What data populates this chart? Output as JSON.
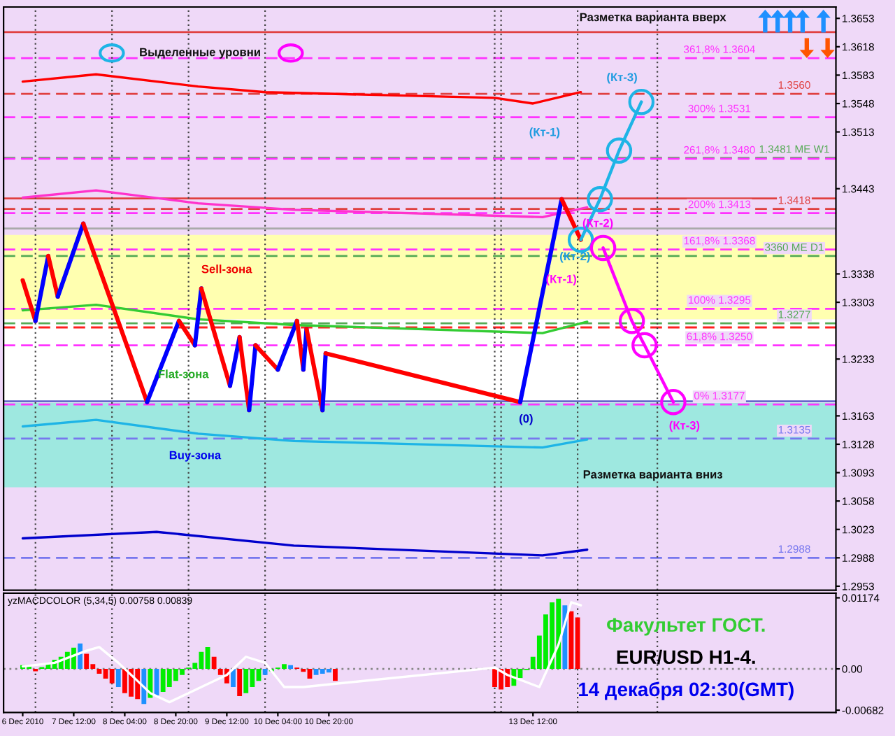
{
  "chart_data": [
    {
      "type": "line",
      "xlim": [
        "2010-12-06T14:00",
        "2010-12-17T11:00"
      ],
      "ylim": [
        1.2948,
        1.3667
      ],
      "yticks": [
        1.3653,
        1.3618,
        1.3583,
        1.3548,
        1.3513,
        1.3443,
        1.3338,
        1.3303,
        1.3233,
        1.3163,
        1.3128,
        1.3093,
        1.3058,
        1.3023,
        1.2988,
        1.2953
      ],
      "tick_labels": "y",
      "grid": false,
      "legend": false,
      "series": [
        {
          "color": "#ff0000",
          "x": [
            "2010-12-06T20:00",
            "2010-12-07T19:00",
            "2010-12-09T03:00",
            "2010-12-10T00:00",
            "2010-12-13T00:00",
            "2010-12-13T12:00",
            "2010-12-14T03:00"
          ],
          "values": [
            1.3575,
            1.3584,
            1.3569,
            1.3562,
            1.3555,
            1.3548,
            1.3562
          ]
        },
        {
          "color": "#ff33cc",
          "x": [
            "2010-12-06T20:00",
            "2010-12-07T19:00",
            "2010-12-09T03:00",
            "2010-12-10T09:00",
            "2010-12-13T15:00",
            "2010-12-14T05:00"
          ],
          "values": [
            1.3432,
            1.3441,
            1.3425,
            1.3417,
            1.3408,
            1.342
          ]
        },
        {
          "color": "#33cc33",
          "x": [
            "2010-12-06T20:00",
            "2010-12-07T19:00",
            "2010-12-09T03:00",
            "2010-12-10T09:00",
            "2010-12-13T15:00",
            "2010-12-14T05:00"
          ],
          "values": [
            1.3293,
            1.33,
            1.3282,
            1.3275,
            1.3265,
            1.3279
          ]
        },
        {
          "color": "#1eb4e6",
          "x": [
            "2010-12-06T20:00",
            "2010-12-07T19:00",
            "2010-12-09T03:00",
            "2010-12-10T09:00",
            "2010-12-13T15:00",
            "2010-12-14T05:00"
          ],
          "values": [
            1.315,
            1.3158,
            1.3141,
            1.3132,
            1.3124,
            1.3134
          ]
        },
        {
          "color": "#0000cc",
          "x": [
            "2010-12-06T20:00",
            "2010-12-08T14:00",
            "2010-12-10T09:00",
            "2010-12-13T15:00",
            "2010-12-14T05:00"
          ],
          "values": [
            1.3012,
            1.302,
            1.3003,
            1.2991,
            1.2998
          ]
        },
        {
          "color": "#ff0000",
          "x": [
            "2010-12-06T20:00",
            "2010-12-07T00:00"
          ],
          "values": [
            1.333,
            1.328
          ]
        },
        {
          "color": "#0000ff",
          "x": [
            "2010-12-07T00:00",
            "2010-12-07T04:00"
          ],
          "values": [
            1.328,
            1.336
          ]
        },
        {
          "color": "#ff0000",
          "x": [
            "2010-12-07T04:00",
            "2010-12-07T07:00"
          ],
          "values": [
            1.336,
            1.331
          ]
        },
        {
          "color": "#0000ff",
          "x": [
            "2010-12-07T07:00",
            "2010-12-07T15:00"
          ],
          "values": [
            1.331,
            1.34
          ]
        },
        {
          "color": "#ff0000",
          "x": [
            "2010-12-07T15:00",
            "2010-12-08T11:00"
          ],
          "values": [
            1.34,
            1.318
          ]
        },
        {
          "color": "#0000ff",
          "x": [
            "2010-12-08T11:00",
            "2010-12-08T21:00"
          ],
          "values": [
            1.318,
            1.328
          ]
        },
        {
          "color": "#ff0000",
          "x": [
            "2010-12-08T21:00",
            "2010-12-09T02:00"
          ],
          "values": [
            1.328,
            1.325
          ]
        },
        {
          "color": "#0000ff",
          "x": [
            "2010-12-09T02:00",
            "2010-12-09T04:00"
          ],
          "values": [
            1.325,
            1.332
          ]
        },
        {
          "color": "#ff0000",
          "x": [
            "2010-12-09T04:00",
            "2010-12-09T13:00"
          ],
          "values": [
            1.332,
            1.32
          ]
        },
        {
          "color": "#0000ff",
          "x": [
            "2010-12-09T13:00",
            "2010-12-09T16:00"
          ],
          "values": [
            1.32,
            1.326
          ]
        },
        {
          "color": "#ff0000",
          "x": [
            "2010-12-09T16:00",
            "2010-12-09T19:00"
          ],
          "values": [
            1.326,
            1.317
          ]
        },
        {
          "color": "#0000ff",
          "x": [
            "2010-12-09T19:00",
            "2010-12-09T21:00"
          ],
          "values": [
            1.317,
            1.325
          ]
        },
        {
          "color": "#ff0000",
          "x": [
            "2010-12-09T21:00",
            "2010-12-10T04:00"
          ],
          "values": [
            1.325,
            1.322
          ]
        },
        {
          "color": "#0000ff",
          "x": [
            "2010-12-10T04:00",
            "2010-12-10T10:00"
          ],
          "values": [
            1.322,
            1.328
          ]
        },
        {
          "color": "#ff0000",
          "x": [
            "2010-12-10T10:00",
            "2010-12-10T12:00"
          ],
          "values": [
            1.328,
            1.322
          ]
        },
        {
          "color": "#0000ff",
          "x": [
            "2010-12-10T12:00",
            "2010-12-10T13:00"
          ],
          "values": [
            1.322,
            1.327
          ]
        },
        {
          "color": "#ff0000",
          "x": [
            "2010-12-10T13:00",
            "2010-12-10T18:00"
          ],
          "values": [
            1.327,
            1.317
          ]
        },
        {
          "color": "#0000ff",
          "x": [
            "2010-12-10T18:00",
            "2010-12-10T19:00"
          ],
          "values": [
            1.317,
            1.324
          ]
        },
        {
          "color": "#ff0000",
          "x": [
            "2010-12-10T19:00",
            "2010-12-13T08:00"
          ],
          "values": [
            1.324,
            1.318
          ]
        },
        {
          "color": "#0000ff",
          "x": [
            "2010-12-13T08:00",
            "2010-12-13T21:00"
          ],
          "values": [
            1.318,
            1.343
          ]
        },
        {
          "color": "#ff0000",
          "x": [
            "2010-12-13T21:00",
            "2010-12-14T03:00"
          ],
          "values": [
            1.343,
            1.338
          ]
        },
        {
          "color": "#1eb4e6",
          "marker": "circle",
          "x": [
            "2010-12-14T03:00",
            "2010-12-14T09:00",
            "2010-12-14T15:00",
            "2010-12-14T22:00"
          ],
          "values": [
            1.338,
            1.343,
            1.349,
            1.355
          ]
        },
        {
          "color": "#ff00ff",
          "marker": "circle",
          "x": [
            "2010-12-14T10:00",
            "2010-12-14T19:00",
            "2010-12-14T23:00",
            "2010-12-15T08:00"
          ],
          "values": [
            1.337,
            1.328,
            1.325,
            1.318
          ]
        }
      ],
      "bands": [
        {
          "axis": "y",
          "from": 1.3282,
          "to": 1.3386,
          "color": "#ffffb0"
        },
        {
          "axis": "y",
          "from": 1.3179,
          "to": 1.3282,
          "color": "#ffffff"
        },
        {
          "axis": "y",
          "from": 1.3075,
          "to": 1.3179,
          "color": "#9ee8e0"
        }
      ],
      "ref_lines": [
        {
          "axis": "y",
          "value": 1.3604,
          "label": "361,8% 1.3604",
          "color": "#ff33ff",
          "line_style": "dashed"
        },
        {
          "axis": "y",
          "value": 1.356,
          "label": "1.3560",
          "color": "#e04040",
          "line_style": "dashed"
        },
        {
          "axis": "y",
          "value": 1.3531,
          "label": "300% 1.3531",
          "color": "#ff33ff",
          "line_style": "dashed"
        },
        {
          "axis": "y",
          "value": 1.3481,
          "label": "1.3481 МЕ W1",
          "color": "#55aa55",
          "line_style": "dashed"
        },
        {
          "axis": "y",
          "value": 1.348,
          "label": "261,8% 1.3480",
          "color": "#ff33ff",
          "line_style": "dashed"
        },
        {
          "axis": "y",
          "value": 1.3418,
          "label": "1.3418",
          "color": "#e04040",
          "line_style": "dashed"
        },
        {
          "axis": "y",
          "value": 1.3413,
          "label": "200% 1.3413",
          "color": "#ff33ff",
          "line_style": "dashed"
        },
        {
          "axis": "y",
          "value": 1.336,
          "label": "3360 МЕ D1",
          "color": "#55aa55",
          "line_style": "dashed"
        },
        {
          "axis": "y",
          "value": 1.3368,
          "label": "161,8% 1.3368",
          "color": "#ff33ff",
          "line_style": "dashed"
        },
        {
          "axis": "y",
          "value": 1.3277,
          "label": "1.3277",
          "color": "#55aa55",
          "line_style": "dashed"
        },
        {
          "axis": "y",
          "value": 1.3295,
          "label": "100% 1.3295",
          "color": "#ff33ff",
          "line_style": "dashed"
        },
        {
          "axis": "y",
          "value": 1.3135,
          "label": "1.3135",
          "color": "#7777ee",
          "line_style": "dashed"
        },
        {
          "axis": "y",
          "value": 1.325,
          "label": "61,8% 1.3250",
          "color": "#ff33ff",
          "line_style": "dashed"
        },
        {
          "axis": "y",
          "value": 1.2988,
          "label": "1.2988",
          "color": "#7777ee",
          "line_style": "dashed"
        },
        {
          "axis": "y",
          "value": 1.3177,
          "label": "0% 1.3177",
          "color": "#ff33ff",
          "line_style": "dashed"
        },
        {
          "axis": "y",
          "value": 1.3636,
          "color": "#e04040",
          "line_style": "solid"
        },
        {
          "axis": "y",
          "value": 1.3431,
          "color": "#e04040",
          "line_style": "solid"
        },
        {
          "axis": "y",
          "value": 1.3394,
          "color": "#aaaaaa",
          "line_style": "solid"
        },
        {
          "axis": "y",
          "value": 1.3272,
          "color": "#ff2020",
          "line_style": "dashed"
        },
        {
          "axis": "y",
          "value": 1.3181,
          "color": "#6666cc",
          "line_style": "solid"
        },
        {
          "axis": "x",
          "value": "2010-12-07T00:00",
          "color": "#444444",
          "line_style": "dotted"
        },
        {
          "axis": "x",
          "value": "2010-12-08T00:00",
          "color": "#444444",
          "line_style": "dotted"
        },
        {
          "axis": "x",
          "value": "2010-12-09T00:00",
          "color": "#444444",
          "line_style": "dotted"
        },
        {
          "axis": "x",
          "value": "2010-12-10T00:00",
          "color": "#444444",
          "line_style": "dotted"
        },
        {
          "axis": "x",
          "value": "2010-12-13T00:00",
          "color": "#444444",
          "line_style": "dotted"
        },
        {
          "axis": "x",
          "value": "2010-12-13T02:00",
          "color": "#444444",
          "line_style": "dotted"
        },
        {
          "axis": "x",
          "value": "2010-12-14T02:00",
          "color": "#444444",
          "line_style": "dotted"
        },
        {
          "axis": "x",
          "value": "2010-12-15T03:00",
          "color": "#444444",
          "line_style": "dotted"
        }
      ],
      "annotations": [
        "Разметка варианта вверх",
        "Выделенные уровни",
        "(Кт-1)",
        "(Кт-3)",
        "(Кт-2)",
        {
          "text": "(Кт-2)",
          "x": "2010-12-14T03:00",
          "y": 1.338
        },
        "(Кт-1)",
        "Sell-зона",
        "Flat-зона",
        {
          "text": "(0)",
          "x": "2010-12-13T08:00",
          "y": 1.318
        },
        "Buy-зона",
        "(Кт-3)",
        "Разметка варианта вниз"
      ]
    },
    {
      "type": "bar",
      "title": "yzMACDCOLOR (5,34,5) 0.00758 0.00839",
      "xlim": [
        "2010-12-06T14:00",
        "2010-12-17T11:00"
      ],
      "ylim": [
        -0.0072,
        0.0125
      ],
      "yticks": [
        0.01174,
        {
          "value": 0,
          "label": "0.00"
        },
        -0.00682
      ],
      "xticks": [
        {
          "value": "2010-12-06T20:00",
          "label": "6 Dec 2010"
        },
        {
          "value": "2010-12-07T12:00",
          "label": "7 Dec 12:00"
        },
        {
          "value": "2010-12-08T04:00",
          "label": "8 Dec 04:00"
        },
        {
          "value": "2010-12-08T20:00",
          "label": "8 Dec 20:00"
        },
        {
          "value": "2010-12-09T12:00",
          "label": "9 Dec 12:00"
        },
        {
          "value": "2010-12-10T04:00",
          "label": "10 Dec 04:00"
        },
        {
          "value": "2010-12-10T20:00",
          "label": "10 Dec 20:00"
        },
        {
          "value": "2010-12-13T12:00",
          "label": "13 Dec 12:00"
        }
      ],
      "grid": false,
      "legend": false,
      "series": [
        {
          "x": [
            "2010-12-06T20:00",
            "2010-12-06T22:00",
            "2010-12-07T00:00",
            "2010-12-07T02:00",
            "2010-12-07T04:00",
            "2010-12-07T06:00",
            "2010-12-07T08:00",
            "2010-12-07T10:00",
            "2010-12-07T12:00",
            "2010-12-07T14:00",
            "2010-12-07T16:00",
            "2010-12-07T18:00",
            "2010-12-07T20:00",
            "2010-12-07T22:00",
            "2010-12-08T00:00",
            "2010-12-08T02:00",
            "2010-12-08T04:00",
            "2010-12-08T06:00",
            "2010-12-08T08:00",
            "2010-12-08T10:00",
            "2010-12-08T12:00",
            "2010-12-08T14:00",
            "2010-12-08T16:00",
            "2010-12-08T18:00",
            "2010-12-08T20:00",
            "2010-12-08T22:00",
            "2010-12-09T00:00",
            "2010-12-09T02:00",
            "2010-12-09T04:00",
            "2010-12-09T06:00",
            "2010-12-09T08:00",
            "2010-12-09T10:00",
            "2010-12-09T12:00",
            "2010-12-09T14:00",
            "2010-12-09T16:00",
            "2010-12-09T18:00",
            "2010-12-09T20:00",
            "2010-12-09T22:00",
            "2010-12-10T00:00",
            "2010-12-10T02:00",
            "2010-12-10T04:00",
            "2010-12-10T06:00",
            "2010-12-10T08:00",
            "2010-12-10T10:00",
            "2010-12-10T12:00",
            "2010-12-10T14:00",
            "2010-12-10T16:00",
            "2010-12-10T18:00",
            "2010-12-10T20:00",
            "2010-12-10T22:00",
            "2010-12-13T00:00",
            "2010-12-13T02:00",
            "2010-12-13T04:00",
            "2010-12-13T06:00",
            "2010-12-13T08:00",
            "2010-12-13T10:00",
            "2010-12-13T12:00",
            "2010-12-13T14:00",
            "2010-12-13T16:00",
            "2010-12-13T18:00",
            "2010-12-13T20:00",
            "2010-12-13T22:00",
            "2010-12-14T00:00",
            "2010-12-14T02:00"
          ],
          "values": [
            0.0006,
            0.0006,
            -0.0004,
            0.0003,
            0.001,
            0.0015,
            0.002,
            0.0028,
            0.0035,
            0.0042,
            0.0025,
            0.0008,
            -0.0008,
            -0.0016,
            -0.0024,
            -0.003,
            -0.004,
            -0.0046,
            -0.005,
            -0.0058,
            -0.0048,
            -0.0044,
            -0.0038,
            -0.003,
            -0.002,
            -0.001,
            0.0002,
            0.001,
            0.0028,
            0.0036,
            0.002,
            -0.001,
            -0.0024,
            -0.003,
            -0.0045,
            -0.004,
            -0.003,
            -0.002,
            -0.001,
            -0.0004,
            0.0002,
            0.0008,
            0.0006,
            0.0002,
            -0.0005,
            -0.0016,
            -0.001,
            -0.0008,
            -0.0006,
            -0.002,
            -0.003,
            -0.0034,
            -0.003,
            -0.0028,
            -0.0015,
            -0.0002,
            0.002,
            0.0055,
            0.009,
            0.011,
            0.0116,
            0.0105,
            0.0095,
            0.0085
          ],
          "colors": [
            "#00ee00",
            "#00ee00",
            "#ff0000",
            "#00ee00",
            "#00ee00",
            "#00ee00",
            "#00ee00",
            "#00ee00",
            "#00ee00",
            "#1e90ff",
            "#ff0000",
            "#ff0000",
            "#ff0000",
            "#ff0000",
            "#ff0000",
            "#1e90ff",
            "#ff0000",
            "#ff0000",
            "#ff0000",
            "#1e90ff",
            "#00ee00",
            "#1e90ff",
            "#00ee00",
            "#00ee00",
            "#00ee00",
            "#00ee00",
            "#00ee00",
            "#00ee00",
            "#00ee00",
            "#00ee00",
            "#ff0000",
            "#ff0000",
            "#ff0000",
            "#1e90ff",
            "#ff0000",
            "#00ee00",
            "#00ee00",
            "#00ee00",
            "#1e90ff",
            "#00ee00",
            "#00ee00",
            "#00ee00",
            "#1e90ff",
            "#ff0000",
            "#ff0000",
            "#ff0000",
            "#1e90ff",
            "#1e90ff",
            "#1e90ff",
            "#ff0000",
            "#ff0000",
            "#ff0000",
            "#ff0000",
            "#00ee00",
            "#00ee00",
            "#00ee00",
            "#00ee00",
            "#00ee00",
            "#00ee00",
            "#00ee00",
            "#00ee00",
            "#1e90ff",
            "#ff0000",
            "#ff0000"
          ]
        },
        {
          "type": "line",
          "color": "#ffffff",
          "x": [
            "2010-12-06T20:00",
            "2010-12-07T06:00",
            "2010-12-07T16:00",
            "2010-12-07T20:00",
            "2010-12-08T02:00",
            "2010-12-08T12:00",
            "2010-12-08T18:00",
            "2010-12-09T04:00",
            "2010-12-09T12:00",
            "2010-12-09T18:00",
            "2010-12-10T00:00",
            "2010-12-10T06:00",
            "2010-12-10T12:00",
            "2010-12-13T00:00",
            "2010-12-13T04:00",
            "2010-12-13T14:00",
            "2010-12-13T20:00",
            "2010-12-14T00:00",
            "2010-12-14T03:00"
          ],
          "values": [
            0.0004,
            0.001,
            0.003,
            0.0036,
            0.001,
            -0.004,
            -0.0055,
            -0.003,
            -0.001,
            0.002,
            0.001,
            -0.003,
            -0.003,
            0.0002,
            -0.001,
            -0.003,
            0.004,
            0.011,
            0.0105
          ]
        }
      ],
      "ref_lines": [
        {
          "axis": "y",
          "value": 0,
          "color": "#888888",
          "line_style": "dotted"
        },
        {
          "axis": "x",
          "value": "2010-12-07T00:00",
          "color": "#444444",
          "line_style": "dotted"
        },
        {
          "axis": "x",
          "value": "2010-12-08T00:00",
          "color": "#444444",
          "line_style": "dotted"
        },
        {
          "axis": "x",
          "value": "2010-12-09T00:00",
          "color": "#444444",
          "line_style": "dotted"
        },
        {
          "axis": "x",
          "value": "2010-12-10T00:00",
          "color": "#444444",
          "line_style": "dotted"
        },
        {
          "axis": "x",
          "value": "2010-12-13T00:00",
          "color": "#444444",
          "line_style": "dotted"
        },
        {
          "axis": "x",
          "value": "2010-12-13T02:00",
          "color": "#444444",
          "line_style": "dotted"
        },
        {
          "axis": "x",
          "value": "2010-12-14T02:00",
          "color": "#444444",
          "line_style": "dotted"
        },
        {
          "axis": "x",
          "value": "2010-12-15T03:00",
          "color": "#444444",
          "line_style": "dotted"
        }
      ],
      "annotations": [
        "Факультет ГОСТ.",
        "EUR/USD H1-4.",
        "14 декабря 02:30(GMT)"
      ]
    }
  ]
}
